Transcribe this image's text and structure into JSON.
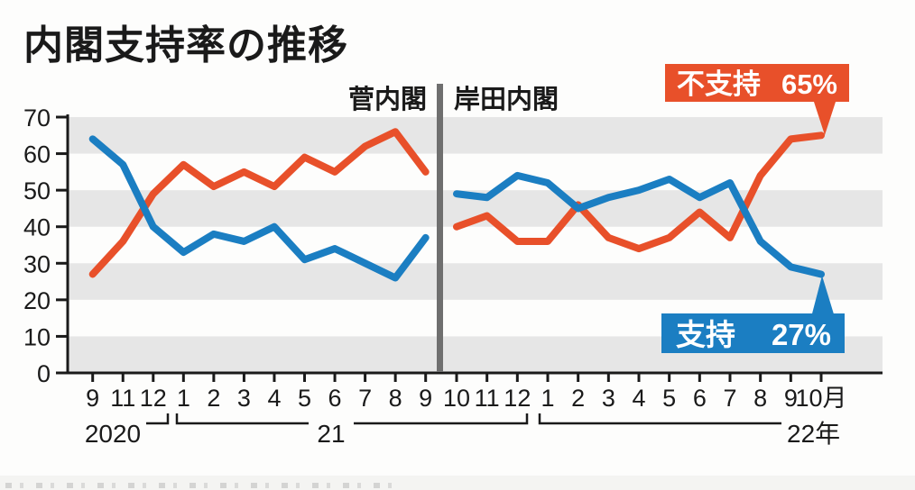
{
  "title": "内閣支持率の推移",
  "panels": {
    "left_label": "菅内閣",
    "right_label": "岸田内閣"
  },
  "callouts": {
    "disapprove": {
      "label": "不支持",
      "value": "65%"
    },
    "approve": {
      "label": "支持",
      "value": "27%"
    }
  },
  "colors": {
    "approve": "#1b7ec2",
    "disapprove": "#e8502a",
    "band": "#e6e6e6",
    "axis": "#1a1a1a",
    "divider": "#6f6f6f"
  },
  "chart_data": {
    "type": "line",
    "title": "内閣支持率の推移",
    "ylim": [
      0,
      70
    ],
    "yticks": [
      0,
      10,
      20,
      30,
      40,
      50,
      60,
      70
    ],
    "grid": "alternating horizontal bands",
    "legend_position": "callouts at line ends",
    "year_labels": [
      "2020",
      "21",
      "22年"
    ],
    "panels": [
      {
        "name": "菅内閣",
        "months": [
          "9",
          "11",
          "12",
          "1",
          "2",
          "3",
          "4",
          "5",
          "6",
          "7",
          "8",
          "9"
        ],
        "series": [
          {
            "name": "不支持",
            "color_key": "disapprove",
            "values": [
              27,
              36,
              49,
              57,
              51,
              55,
              51,
              59,
              55,
              62,
              66,
              55
            ]
          },
          {
            "name": "支持",
            "color_key": "approve",
            "values": [
              64,
              57,
              40,
              33,
              38,
              36,
              40,
              31,
              34,
              30,
              26,
              37
            ]
          }
        ]
      },
      {
        "name": "岸田内閣",
        "months": [
          "10",
          "11",
          "12",
          "1",
          "2",
          "3",
          "4",
          "5",
          "6",
          "7",
          "8",
          "9",
          "10月"
        ],
        "series": [
          {
            "name": "不支持",
            "color_key": "disapprove",
            "values": [
              40,
              43,
              36,
              36,
              46,
              37,
              34,
              37,
              44,
              37,
              54,
              64,
              65
            ]
          },
          {
            "name": "支持",
            "color_key": "approve",
            "values": [
              49,
              48,
              54,
              52,
              45,
              48,
              50,
              53,
              48,
              52,
              36,
              29,
              27
            ]
          }
        ]
      }
    ]
  }
}
